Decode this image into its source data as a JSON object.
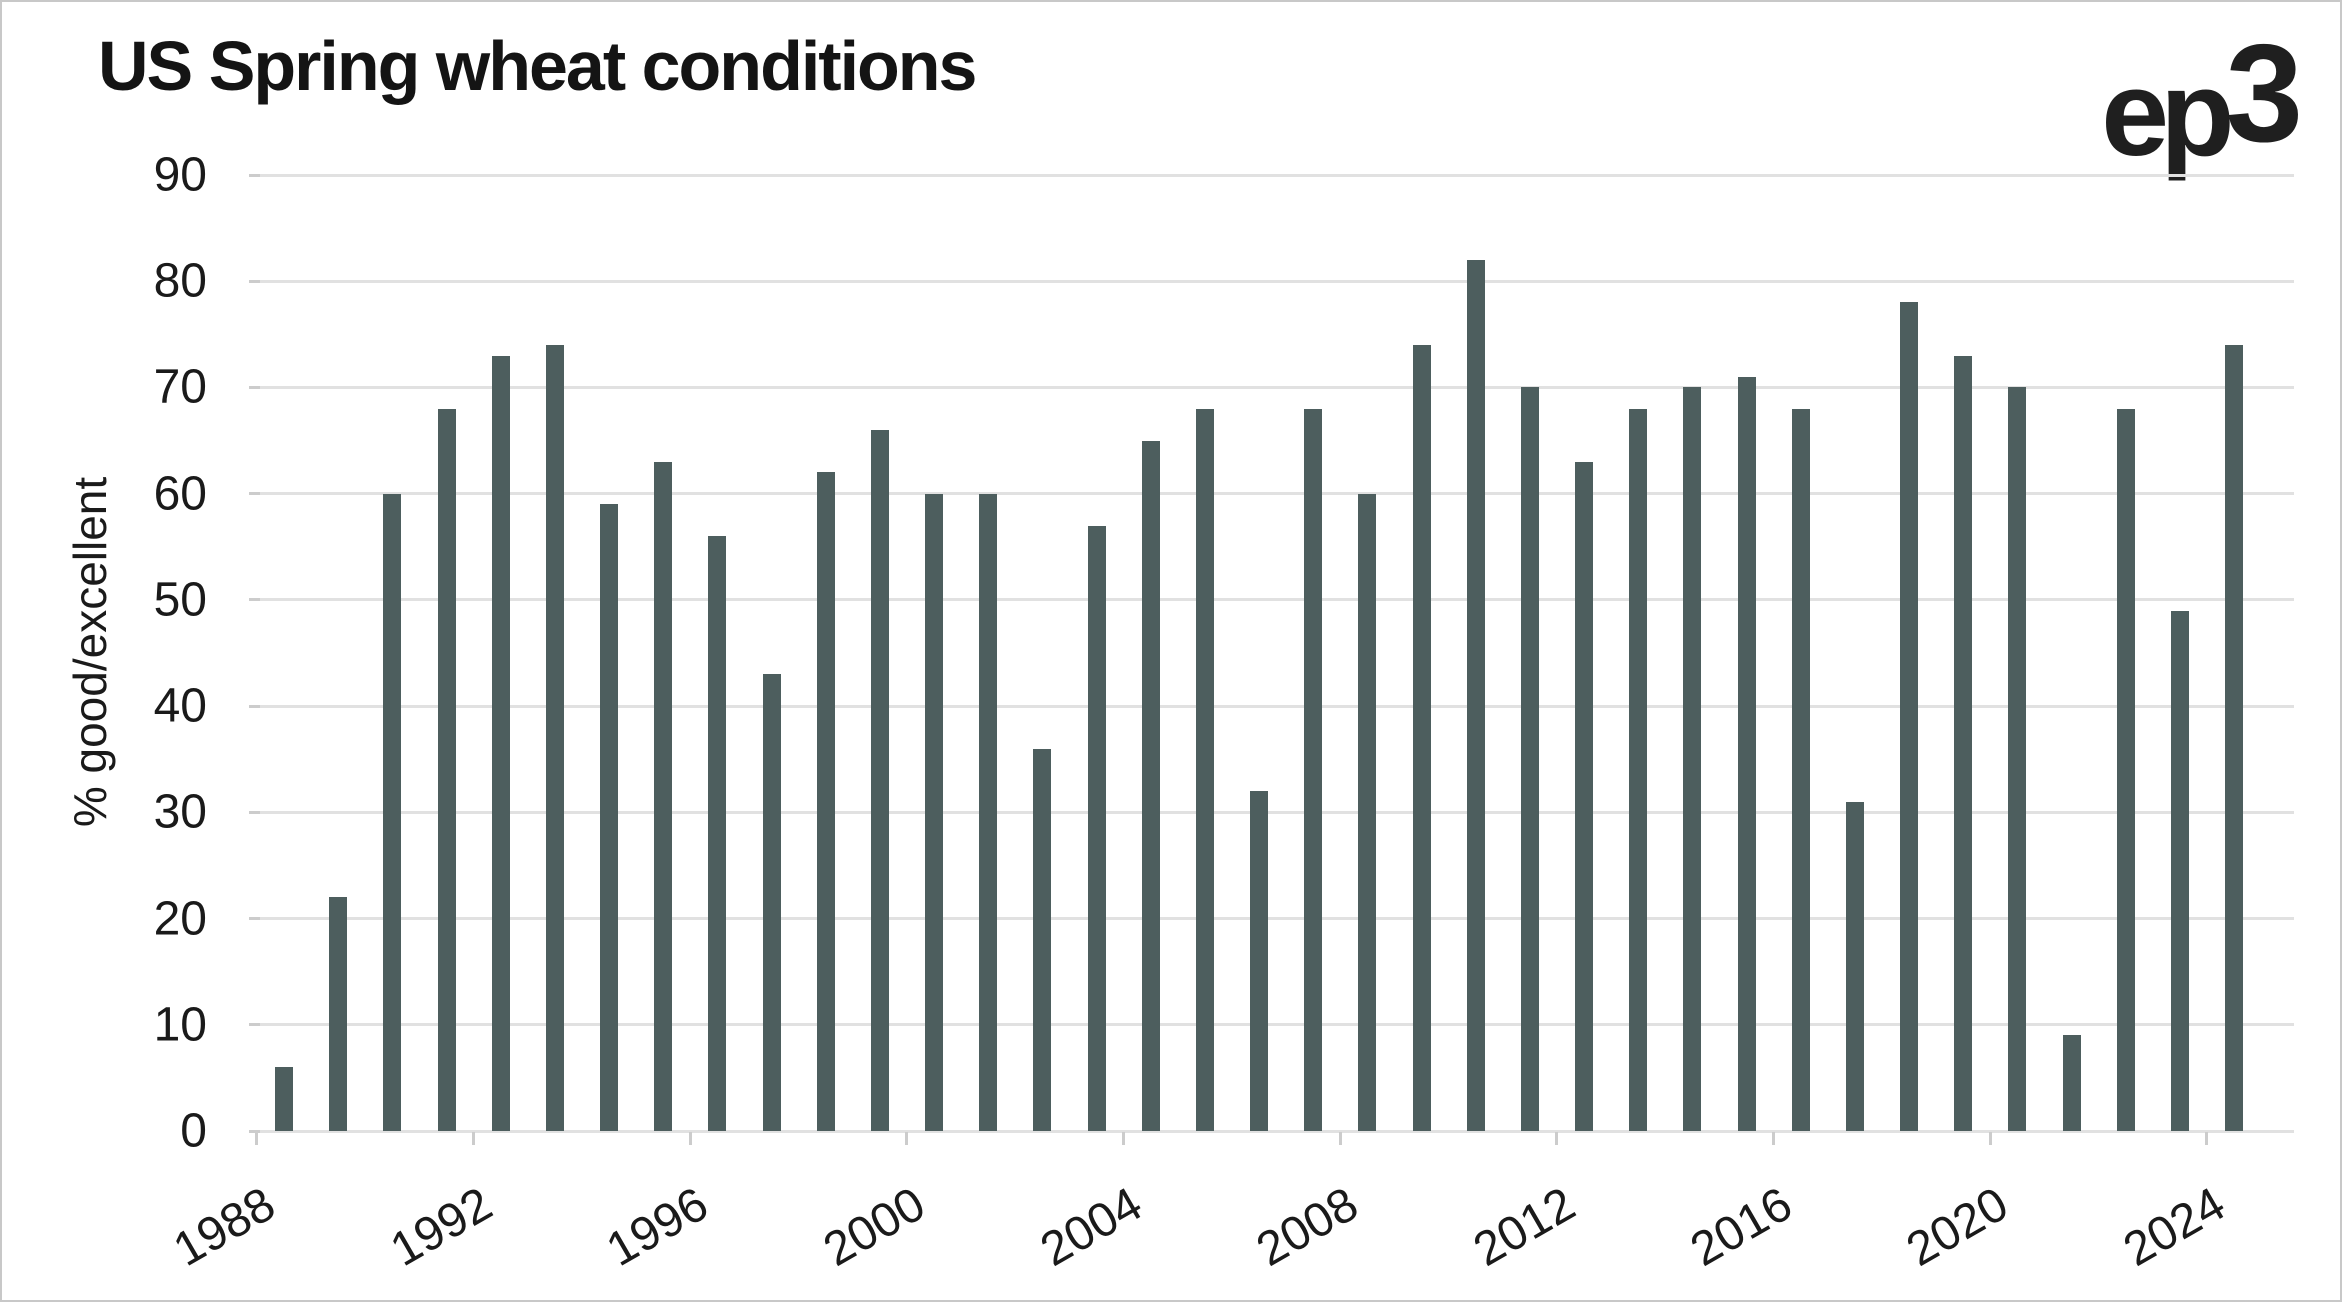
{
  "header": {
    "title": "US Spring wheat conditions",
    "logo_text": "ep3"
  },
  "chart_data": {
    "type": "bar",
    "title": "US Spring wheat conditions",
    "xlabel": "",
    "ylabel": "% good/excellent",
    "ylim": [
      0,
      90
    ],
    "ytick_step": 10,
    "ytick_labels": [
      "0",
      "10",
      "20",
      "30",
      "40",
      "50",
      "60",
      "70",
      "80",
      "90"
    ],
    "xtick_labels": [
      "1988",
      "1992",
      "1996",
      "2000",
      "2004",
      "2008",
      "2012",
      "2016",
      "2020",
      "2024"
    ],
    "grid": "horizontal",
    "legend": "none",
    "categories": [
      1988,
      1989,
      1990,
      1991,
      1992,
      1993,
      1994,
      1995,
      1996,
      1997,
      1998,
      1999,
      2000,
      2001,
      2002,
      2003,
      2004,
      2005,
      2006,
      2007,
      2008,
      2009,
      2010,
      2011,
      2012,
      2013,
      2014,
      2015,
      2016,
      2017,
      2018,
      2019,
      2020,
      2021,
      2022,
      2023,
      2024
    ],
    "values": [
      6,
      22,
      60,
      68,
      73,
      74,
      59,
      63,
      56,
      43,
      62,
      66,
      60,
      60,
      36,
      57,
      65,
      68,
      32,
      68,
      60,
      74,
      82,
      70,
      63,
      68,
      70,
      71,
      68,
      31,
      78,
      73,
      70,
      9,
      68,
      49,
      74
    ]
  },
  "colors": {
    "bar": "#4d5e5e",
    "grid": "#e1e1e1",
    "tick": "#cccccc",
    "text": "#1a1a1a",
    "title_text": "#141414",
    "logo_text": "#1f1f1f",
    "background": "#ffffff",
    "border": "#c8c8c8"
  }
}
